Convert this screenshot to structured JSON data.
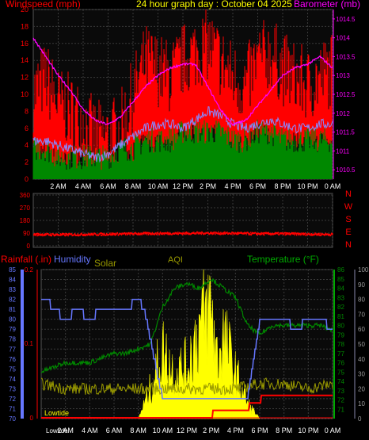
{
  "header": {
    "left_title": "Windspeed (mph)",
    "center_title": "24 hour graph day : October 04 2025",
    "right_title": "Barometer (mb)"
  },
  "colors": {
    "background": "#000000",
    "plot_bg": "#0a0a0a",
    "grid": "#3a3a3a",
    "axis_text": "#ffffff",
    "wind_gust": "#ff0000",
    "wind_avg": "#008800",
    "barometer": "#ff00ff",
    "wind_overlay": "#8888ff",
    "direction": "#ff0000",
    "rain": "#ff0000",
    "humidity": "#6677ff",
    "solar": "#ffff00",
    "temperature": "#008800",
    "aqi": "#999900"
  },
  "bottom_labels": {
    "rainfall": "Rainfall (.in)",
    "humidity": "Humidity",
    "solar": "Solar",
    "aqi": "AQI",
    "temperature": "Temperature (°F)",
    "lowtide": "Lowtide",
    "lowtide_axis": "Lowtide"
  },
  "chart_data": [
    {
      "type": "line",
      "id": "wind_baro",
      "x_ticks": [
        "2 AM",
        "4 AM",
        "6 AM",
        "8 AM",
        "10 AM",
        "12 PM",
        "2 PM",
        "4 PM",
        "6 PM",
        "8 PM",
        "10 PM",
        "0 AM"
      ],
      "ylabel_left": "Windspeed (mph)",
      "ylabel_right": "Barometer (mb)",
      "ylim_left": [
        0,
        20
      ],
      "yticks_left": [
        0,
        2,
        4,
        6,
        8,
        10,
        12,
        14,
        16,
        18,
        20
      ],
      "ylim_right": [
        1010.25,
        1014.75
      ],
      "yticks_right": [
        1010.5,
        1011,
        1011.5,
        1012,
        1012.5,
        1013,
        1013.5,
        1014,
        1014.5
      ],
      "series": [
        {
          "name": "gust",
          "color": "#ff0000",
          "hours": [
            0,
            1,
            2,
            3,
            4,
            5,
            6,
            7,
            8,
            9,
            10,
            11,
            12,
            13,
            14,
            15,
            16,
            17,
            18,
            19,
            20,
            21,
            22,
            23,
            24
          ],
          "values": [
            10,
            12,
            9,
            8,
            7,
            5,
            5,
            6,
            10,
            14,
            13,
            12,
            14,
            15,
            16,
            14,
            12,
            11,
            14,
            15,
            13,
            12,
            11,
            12,
            13
          ]
        },
        {
          "name": "average",
          "color": "#008800",
          "hours": [
            0,
            1,
            2,
            3,
            4,
            5,
            6,
            7,
            8,
            9,
            10,
            11,
            12,
            13,
            14,
            15,
            16,
            17,
            18,
            19,
            20,
            21,
            22,
            23,
            24
          ],
          "values": [
            3,
            3,
            2,
            2,
            2,
            2,
            2,
            3,
            3,
            4,
            4,
            4,
            5,
            5,
            5,
            5,
            4,
            4,
            5,
            5,
            4,
            4,
            4,
            4,
            4
          ]
        },
        {
          "name": "wind",
          "color": "#8888ff",
          "hours": [
            0,
            1,
            2,
            3,
            4,
            5,
            6,
            7,
            8,
            9,
            10,
            11,
            12,
            13,
            14,
            15,
            16,
            17,
            18,
            19,
            20,
            21,
            22,
            23,
            24
          ],
          "values": [
            4.5,
            4.5,
            4,
            3.5,
            3,
            2.5,
            3,
            4,
            5,
            6,
            6.5,
            6.5,
            6,
            7,
            8,
            7.5,
            6.5,
            6,
            6.5,
            7,
            6.5,
            6,
            6,
            6.5,
            6.5
          ]
        },
        {
          "name": "barometer",
          "color": "#ff00ff",
          "hours": [
            0,
            1,
            2,
            3,
            4,
            5,
            6,
            7,
            8,
            9,
            10,
            11,
            12,
            13,
            14,
            15,
            16,
            17,
            18,
            19,
            20,
            21,
            22,
            23,
            24
          ],
          "values": [
            1014,
            1013.5,
            1013,
            1012.6,
            1012.1,
            1011.8,
            1011.7,
            1011.9,
            1012.3,
            1012.7,
            1013,
            1013.2,
            1013.3,
            1013.3,
            1012.7,
            1012.1,
            1011.7,
            1011.8,
            1012.2,
            1012.6,
            1013,
            1013.2,
            1013.3,
            1013.5,
            1013.2
          ]
        }
      ]
    },
    {
      "type": "scatter",
      "id": "wind_direction",
      "ylim": [
        0,
        360
      ],
      "yticks": [
        0,
        90,
        180,
        270,
        360
      ],
      "direction_labels": [
        "N",
        "W",
        "S",
        "E",
        "N"
      ],
      "hours": [
        0,
        2,
        4,
        6,
        8,
        10,
        12,
        14,
        16,
        18,
        20,
        22,
        24
      ],
      "values": [
        80,
        78,
        80,
        82,
        85,
        87,
        88,
        90,
        88,
        85,
        85,
        82,
        80
      ]
    },
    {
      "type": "line",
      "id": "temp_hum_solar",
      "ylim_left": [
        70,
        85
      ],
      "yticks_left": [
        70,
        71,
        72,
        73,
        74,
        75,
        76,
        77,
        78,
        79,
        80,
        81,
        82,
        83,
        84,
        85
      ],
      "rain_ticks": [
        [
          "0",
          527
        ],
        [
          "0.1",
          433
        ],
        [
          "0.2",
          340
        ]
      ],
      "ylim_temp": [
        70,
        86
      ],
      "yticks_temp": [
        71,
        72,
        73,
        74,
        75,
        76,
        77,
        78,
        79,
        80,
        81,
        82,
        83,
        84,
        85,
        86
      ],
      "ylim_hum_right": [
        0,
        100
      ],
      "yticks_hum_right": [
        0,
        10,
        20,
        30,
        40,
        50,
        60,
        70,
        80,
        90,
        100
      ],
      "series": [
        {
          "name": "Humidity",
          "color": "#6677ff",
          "hours": [
            0,
            0.5,
            1,
            2,
            3,
            4,
            5,
            6,
            7,
            8,
            8.5,
            9,
            10,
            11,
            12,
            13,
            14,
            15,
            16,
            17,
            18,
            19,
            20,
            21,
            22,
            23,
            24
          ],
          "values": [
            82,
            82,
            81,
            80,
            81,
            80,
            81,
            81,
            81,
            82,
            81,
            78,
            72,
            72,
            72,
            72,
            72,
            72,
            72,
            72,
            80,
            80,
            80,
            79,
            80,
            80,
            79
          ]
        },
        {
          "name": "Temperature",
          "color": "#008800",
          "hours": [
            0,
            1,
            2,
            3,
            4,
            5,
            6,
            7,
            8,
            9,
            10,
            11,
            12,
            13,
            14,
            15,
            16,
            17,
            18,
            19,
            20,
            21,
            22,
            23,
            24
          ],
          "values": [
            75,
            75.5,
            76,
            76,
            76,
            76.5,
            77,
            77,
            77.5,
            78,
            82,
            84,
            84.5,
            84,
            85,
            84,
            83,
            80,
            79,
            80,
            80,
            80,
            80,
            80,
            79.5
          ]
        },
        {
          "name": "AQI",
          "color": "#999900",
          "hours": [
            0,
            2,
            4,
            6,
            8,
            10,
            12,
            14,
            16,
            18,
            20,
            22,
            24
          ],
          "values": [
            73.5,
            73,
            73,
            73,
            73,
            73,
            73,
            73,
            73,
            73.5,
            73.5,
            73,
            73.5
          ]
        },
        {
          "name": "Solar",
          "color": "#ffff00",
          "hours": [
            8,
            9,
            10,
            11,
            12,
            13,
            14,
            14.5,
            15,
            16,
            17,
            18
          ],
          "values": [
            0,
            20,
            45,
            30,
            35,
            60,
            75,
            40,
            55,
            30,
            10,
            0
          ]
        },
        {
          "name": "Rainfall",
          "color": "#ff0000",
          "hours": [
            0,
            14,
            14.1,
            17,
            17.1,
            18,
            18.1,
            24
          ],
          "values": [
            0,
            0,
            0.01,
            0.01,
            0.02,
            0.02,
            0.03,
            0.03
          ]
        }
      ]
    }
  ]
}
